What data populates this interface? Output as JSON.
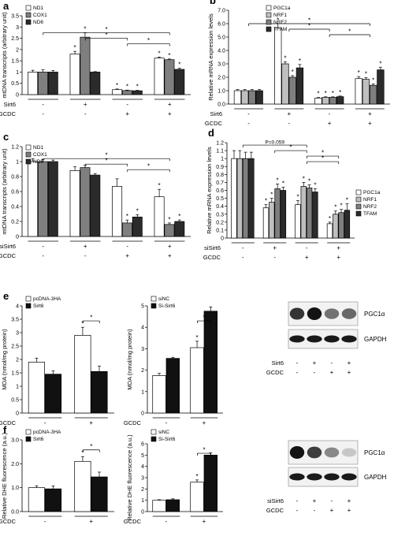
{
  "chart_data": [
    {
      "id": "a",
      "panel_label": "a",
      "type": "bar",
      "ylabel": "mtDNA transcripts (arbitrary unit)",
      "ylim": [
        0,
        3.5
      ],
      "yticks": [
        0,
        0.5,
        1,
        1.5,
        2,
        2.5,
        3,
        3.5
      ],
      "ytick_labels": [
        "0",
        "0.5",
        "1",
        "1.5",
        "2",
        "2.5",
        "3",
        "3.5"
      ],
      "series": [
        {
          "name": "ND1",
          "color": "#ffffff",
          "values": [
            1.0,
            1.8,
            0.22,
            1.62
          ],
          "errors": [
            0.08,
            0.12,
            0.03,
            0.05
          ]
        },
        {
          "name": "COX1",
          "color": "#7f7f7f",
          "values": [
            1.0,
            2.55,
            0.18,
            1.55
          ],
          "errors": [
            0.1,
            0.2,
            0.02,
            0.03
          ]
        },
        {
          "name": "ND6",
          "color": "#2b2b2b",
          "values": [
            1.0,
            1.0,
            0.17,
            1.12
          ],
          "errors": [
            0.07,
            0.02,
            0.02,
            0.05
          ]
        }
      ],
      "stars": [
        [
          false,
          true,
          true,
          true
        ],
        [
          false,
          true,
          true,
          true
        ],
        [
          false,
          false,
          true,
          true
        ]
      ],
      "conditions": [
        {
          "label": "Sirt6",
          "signs": [
            "-",
            "+",
            "-",
            "+"
          ]
        },
        {
          "label": "GCDC",
          "signs": [
            "-",
            "-",
            "+",
            "+"
          ]
        }
      ],
      "sig": [
        {
          "from": 0,
          "to": 3,
          "label": "*"
        },
        {
          "from": 1,
          "to": 2,
          "label": "*"
        },
        {
          "from": 2,
          "to": 3,
          "label": "*"
        }
      ],
      "legend_position": "top-left"
    },
    {
      "id": "b",
      "panel_label": "b",
      "type": "bar",
      "ylabel": "Relative mRNA expression levels",
      "ylim": [
        0,
        7
      ],
      "yticks": [
        0,
        1,
        2,
        3,
        4,
        5,
        6,
        7
      ],
      "ytick_labels": [
        "0.0",
        "1.0",
        "2.0",
        "3.0",
        "4.0",
        "5.0",
        "6.0",
        "7.0"
      ],
      "series": [
        {
          "name": "PGC1a",
          "color": "#ffffff",
          "values": [
            1.0,
            5.7,
            0.45,
            1.9
          ],
          "errors": [
            0.08,
            0.3,
            0.04,
            0.15
          ]
        },
        {
          "name": "NRF1",
          "color": "#bfbfbf",
          "values": [
            1.0,
            3.0,
            0.5,
            1.85
          ],
          "errors": [
            0.08,
            0.15,
            0.04,
            0.12
          ]
        },
        {
          "name": "NRF2",
          "color": "#7f7f7f",
          "values": [
            1.0,
            2.0,
            0.5,
            1.4
          ],
          "errors": [
            0.08,
            0.12,
            0.04,
            0.1
          ]
        },
        {
          "name": "TFAM",
          "color": "#2b2b2b",
          "values": [
            1.0,
            2.7,
            0.55,
            2.55
          ],
          "errors": [
            0.08,
            0.25,
            0.05,
            0.2
          ]
        }
      ],
      "stars": [
        [
          false,
          true,
          true,
          true
        ],
        [
          false,
          true,
          true,
          true
        ],
        [
          false,
          true,
          true,
          true
        ],
        [
          false,
          true,
          true,
          true
        ]
      ],
      "conditions": [
        {
          "label": "Sirt6",
          "signs": [
            "-",
            "+",
            "-",
            "+"
          ]
        },
        {
          "label": "GCDC",
          "signs": [
            "-",
            "-",
            "+",
            "+"
          ]
        }
      ],
      "sig": [
        {
          "from": 0,
          "to": 3,
          "label": "*"
        },
        {
          "from": 1,
          "to": 2,
          "label": "*"
        },
        {
          "from": 2,
          "to": 3,
          "label": "*"
        }
      ],
      "legend_position": "top-right"
    },
    {
      "id": "c",
      "panel_label": "c",
      "type": "bar",
      "ylabel": "mtDNA transcripts (arbitrary unit)",
      "ylim": [
        0,
        1.2
      ],
      "yticks": [
        0,
        0.2,
        0.4,
        0.6,
        0.8,
        1,
        1.2
      ],
      "ytick_labels": [
        "0",
        "0.2",
        "0.4",
        "0.6",
        "0.8",
        "1",
        "1.2"
      ],
      "series": [
        {
          "name": "ND1",
          "color": "#ffffff",
          "values": [
            1.0,
            0.88,
            0.67,
            0.53
          ],
          "errors": [
            0.04,
            0.05,
            0.1,
            0.1
          ]
        },
        {
          "name": "COX1",
          "color": "#7f7f7f",
          "values": [
            1.0,
            0.92,
            0.18,
            0.16
          ],
          "errors": [
            0.03,
            0.03,
            0.04,
            0.02
          ]
        },
        {
          "name": "ND6",
          "color": "#2b2b2b",
          "values": [
            1.0,
            0.82,
            0.26,
            0.2
          ],
          "errors": [
            0.02,
            0.02,
            0.03,
            0.02
          ]
        }
      ],
      "stars": [
        [
          false,
          false,
          false,
          true
        ],
        [
          false,
          false,
          true,
          true
        ],
        [
          false,
          false,
          true,
          true
        ]
      ],
      "conditions": [
        {
          "label": "siSirt6",
          "signs": [
            "-",
            "+",
            "-",
            "+"
          ]
        },
        {
          "label": "GCDC",
          "signs": [
            "-",
            "-",
            "+",
            "+"
          ]
        }
      ],
      "sig": [
        {
          "from": 0,
          "to": 3,
          "label": "*"
        },
        {
          "from": 1,
          "to": 2,
          "label": "*"
        },
        {
          "from": 2,
          "to": 3,
          "label": "*"
        }
      ],
      "legend_position": "top-left"
    },
    {
      "id": "d",
      "panel_label": "d",
      "type": "bar",
      "ylabel": "Relative mRNA expression levels",
      "ylim": [
        0,
        1.2
      ],
      "yticks": [
        0,
        0.1,
        0.2,
        0.3,
        0.4,
        0.5,
        0.6,
        0.7,
        0.8,
        0.9,
        1,
        1.1,
        1.2
      ],
      "ytick_labels": [
        "0",
        "0.1",
        "0.2",
        "0.3",
        "0.4",
        "0.5",
        "0.6",
        "0.7",
        "0.8",
        "0.9",
        "1",
        "1.1",
        "1.2"
      ],
      "series": [
        {
          "name": "PGC1a",
          "color": "#ffffff",
          "values": [
            1.0,
            0.38,
            0.42,
            0.18
          ],
          "errors": [
            0.1,
            0.04,
            0.05,
            0.02
          ]
        },
        {
          "name": "NRF1",
          "color": "#bfbfbf",
          "values": [
            1.0,
            0.45,
            0.65,
            0.3
          ],
          "errors": [
            0.1,
            0.05,
            0.05,
            0.04
          ]
        },
        {
          "name": "NRF2",
          "color": "#7f7f7f",
          "values": [
            1.0,
            0.62,
            0.63,
            0.32
          ],
          "errors": [
            0.08,
            0.06,
            0.04,
            0.04
          ]
        },
        {
          "name": "TFAM",
          "color": "#2b2b2b",
          "values": [
            1.0,
            0.6,
            0.58,
            0.35
          ],
          "errors": [
            0.08,
            0.04,
            0.04,
            0.08
          ]
        }
      ],
      "stars": [
        [
          false,
          true,
          true,
          true
        ],
        [
          false,
          true,
          true,
          true
        ],
        [
          false,
          true,
          true,
          true
        ],
        [
          false,
          true,
          true,
          true
        ]
      ],
      "conditions": [
        {
          "label": "siSirt6",
          "signs": [
            "-",
            "+",
            "-",
            "+"
          ]
        },
        {
          "label": "GCDC",
          "signs": [
            "-",
            "-",
            "+",
            "+"
          ]
        }
      ],
      "sig": [
        {
          "from": 0,
          "to": 2,
          "label": "P=0.059"
        },
        {
          "from": 1,
          "to": 2,
          "label": "*"
        },
        {
          "from": 2,
          "to": 3,
          "label": "*"
        },
        {
          "from": 2,
          "to": 3,
          "label": "*"
        }
      ],
      "legend_position": "right"
    },
    {
      "id": "e1",
      "panel_label": "e",
      "type": "bar",
      "ylabel": "MDA (nmol/mg protein)",
      "ylim": [
        0,
        4
      ],
      "yticks": [
        0,
        0.5,
        1,
        1.5,
        2,
        2.5,
        3,
        3.5,
        4
      ],
      "ytick_labels": [
        "0",
        "0.5",
        "1",
        "1.5",
        "2",
        "2.5",
        "3",
        "3.5",
        "4"
      ],
      "series": [
        {
          "name": "pcDNA-3HA",
          "color": "#ffffff",
          "values": [
            1.9,
            2.9
          ],
          "errors": [
            0.15,
            0.3
          ]
        },
        {
          "name": "Sirt6",
          "color": "#111111",
          "values": [
            1.45,
            1.55
          ],
          "errors": [
            0.12,
            0.2
          ]
        }
      ],
      "stars": [
        [
          false,
          true
        ],
        [
          false,
          false
        ]
      ],
      "conditions": [
        {
          "label": "GCDC",
          "signs": [
            "-",
            "+"
          ]
        }
      ],
      "sig": [
        {
          "from": 1,
          "to": 1,
          "label": "*"
        }
      ],
      "legend_position": "top-left"
    },
    {
      "id": "e2",
      "panel_label": "",
      "type": "bar",
      "ylabel": "MDA (nmol/mg protein)",
      "ylim": [
        0,
        5
      ],
      "yticks": [
        0,
        1,
        2,
        3,
        4,
        5
      ],
      "ytick_labels": [
        "0",
        "1",
        "2",
        "3",
        "4",
        "5"
      ],
      "series": [
        {
          "name": "siNC",
          "color": "#ffffff",
          "values": [
            1.75,
            3.05
          ],
          "errors": [
            0.1,
            0.3
          ]
        },
        {
          "name": "Si-Sirt6",
          "color": "#111111",
          "values": [
            2.55,
            4.75
          ],
          "errors": [
            0.05,
            0.2
          ]
        }
      ],
      "stars": [
        [
          false,
          true
        ],
        [
          false,
          false
        ]
      ],
      "conditions": [
        {
          "label": "GCDC",
          "signs": [
            "-",
            "+"
          ]
        }
      ],
      "sig": [
        {
          "from": 1,
          "to": 1,
          "label": "*"
        }
      ],
      "legend_position": "top-left"
    },
    {
      "id": "f1",
      "panel_label": "f",
      "type": "bar",
      "ylabel": "Relative DHE fluorescence (a.u.)",
      "ylim": [
        0,
        3
      ],
      "yticks": [
        0,
        1,
        2,
        3
      ],
      "ytick_labels": [
        "0.0",
        "1.0",
        "2.0",
        "3.0"
      ],
      "series": [
        {
          "name": "pcDNA-3HA",
          "color": "#ffffff",
          "values": [
            1.0,
            2.1
          ],
          "errors": [
            0.08,
            0.2
          ]
        },
        {
          "name": "Sirt6",
          "color": "#111111",
          "values": [
            0.95,
            1.45
          ],
          "errors": [
            0.12,
            0.2
          ]
        }
      ],
      "stars": [
        [
          false,
          true
        ],
        [
          false,
          false
        ]
      ],
      "conditions": [
        {
          "label": "GCDC",
          "signs": [
            "-",
            "+"
          ]
        }
      ],
      "sig": [
        {
          "from": 1,
          "to": 1,
          "label": "*"
        }
      ],
      "legend_position": "top-left"
    },
    {
      "id": "f2",
      "panel_label": "",
      "type": "bar",
      "ylabel": "Relative DHE fluorescence (a.u.)",
      "ylim": [
        0,
        6
      ],
      "yticks": [
        0,
        1,
        2,
        3,
        4,
        5,
        6
      ],
      "ytick_labels": [
        "0",
        "1",
        "2",
        "3",
        "4",
        "5",
        "6"
      ],
      "series": [
        {
          "name": "siNC",
          "color": "#ffffff",
          "values": [
            1.0,
            2.6
          ],
          "errors": [
            0.05,
            0.2
          ]
        },
        {
          "name": "Si-Sirt6",
          "color": "#111111",
          "values": [
            1.05,
            5.0
          ],
          "errors": [
            0.08,
            0.2
          ]
        }
      ],
      "stars": [
        [
          false,
          true
        ],
        [
          false,
          false
        ]
      ],
      "conditions": [
        {
          "label": "GCDC",
          "signs": [
            "-",
            "+"
          ]
        }
      ],
      "sig": [
        {
          "from": 1,
          "to": 1,
          "label": "*"
        }
      ],
      "legend_position": "top-left"
    }
  ],
  "blots": [
    {
      "id": "blot-e",
      "protein_label": "PGC1α",
      "loading_label": "GAPDH",
      "lane_intensity": [
        0.85,
        1.0,
        0.55,
        0.6
      ],
      "conditions": [
        {
          "label": "Sirt6",
          "signs": [
            "-",
            "+",
            "-",
            "+"
          ]
        },
        {
          "label": "GCDC",
          "signs": [
            "-",
            "-",
            "+",
            "+"
          ]
        }
      ]
    },
    {
      "id": "blot-f",
      "protein_label": "PGC1α",
      "loading_label": "GAPDH",
      "lane_intensity": [
        1.0,
        0.8,
        0.45,
        0.15
      ],
      "conditions": [
        {
          "label": "siSirt6",
          "signs": [
            "-",
            "+",
            "-",
            "+"
          ]
        },
        {
          "label": "GCDC",
          "signs": [
            "-",
            "-",
            "+",
            "+"
          ]
        }
      ]
    }
  ]
}
